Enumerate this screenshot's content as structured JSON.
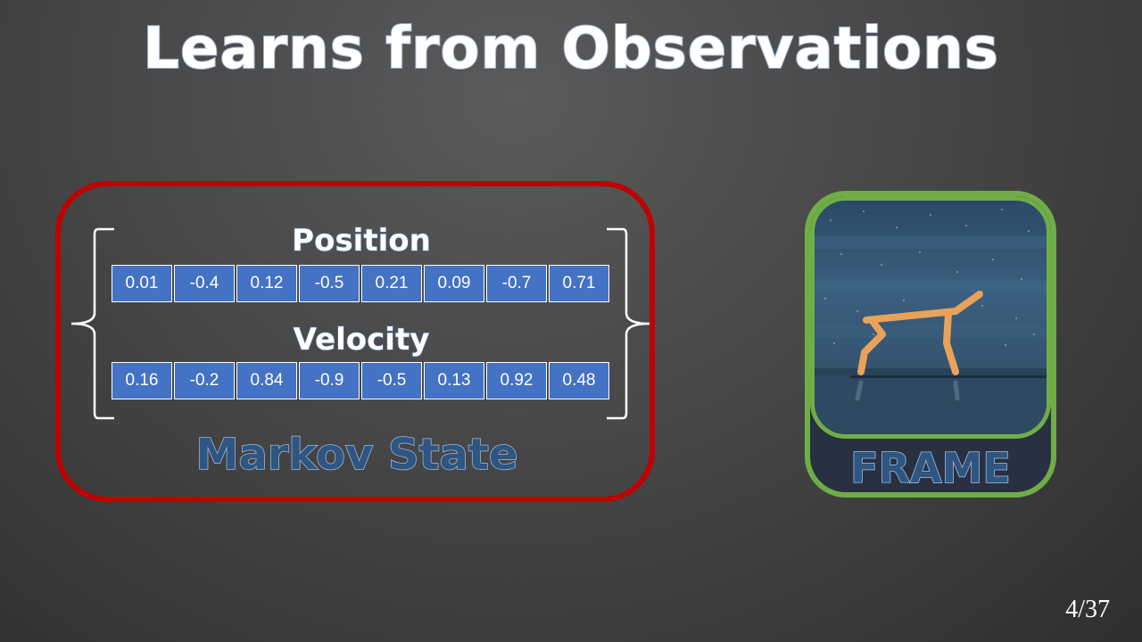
{
  "title": "Learns from Observations",
  "state": {
    "position_label": "Position",
    "position_values": [
      "0.01",
      "-0.4",
      "0.12",
      "-0.5",
      "0.21",
      "0.09",
      "-0.7",
      "0.71"
    ],
    "velocity_label": "Velocity",
    "velocity_values": [
      "0.16",
      "-0.2",
      "0.84",
      "-0.9",
      "-0.5",
      "0.13",
      "0.92",
      "0.48"
    ],
    "caption": "Markov State",
    "border_color": "#c00000",
    "cell_color": "#4472c4"
  },
  "frame": {
    "caption": "FRAME",
    "border_color": "#70ad47",
    "image_icon": "half-cheetah-robot-icon",
    "robot_color": "#e8a25a"
  },
  "page": {
    "current": "4",
    "separator": "/",
    "total": "37"
  }
}
